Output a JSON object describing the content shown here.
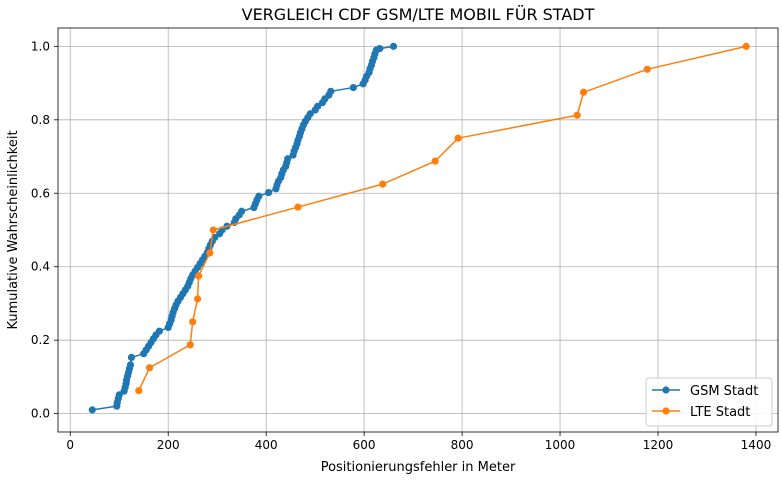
{
  "chart_data": {
    "type": "line",
    "title": "VERGLEICH CDF GSM/LTE MOBIL FÜR STADT",
    "xlabel": "Positionierungsfehler in Meter",
    "ylabel": "Kumulative Wahrscheinlichkeit",
    "xlim": [
      -25,
      1445
    ],
    "ylim": [
      -0.05,
      1.05
    ],
    "xticks": [
      0,
      200,
      400,
      600,
      800,
      1000,
      1200,
      1400
    ],
    "yticks": [
      0.0,
      0.2,
      0.4,
      0.6,
      0.8,
      1.0
    ],
    "xtick_labels": [
      "0",
      "200",
      "400",
      "600",
      "800",
      "1000",
      "1200",
      "1400"
    ],
    "ytick_labels": [
      "0.0",
      "0.2",
      "0.4",
      "0.6",
      "0.8",
      "1.0"
    ],
    "grid": true,
    "legend": "bottom-right",
    "series": [
      {
        "name": "GSM Stadt",
        "color": "#1f77b4",
        "x": [
          45,
          95,
          96,
          98,
          100,
          110,
          112,
          114,
          115,
          117,
          119,
          121,
          123,
          125,
          150,
          155,
          160,
          165,
          170,
          175,
          182,
          200,
          203,
          206,
          208,
          210,
          213,
          216,
          220,
          225,
          230,
          235,
          240,
          243,
          246,
          250,
          255,
          260,
          265,
          270,
          275,
          280,
          283,
          286,
          290,
          295,
          305,
          310,
          320,
          335,
          338,
          345,
          350,
          375,
          378,
          381,
          385,
          405,
          420,
          422,
          425,
          430,
          432,
          435,
          440,
          442,
          444,
          455,
          457,
          460,
          463,
          465,
          468,
          470,
          473,
          476,
          480,
          485,
          490,
          500,
          505,
          515,
          520,
          528,
          532,
          578,
          598,
          602,
          605,
          610,
          612,
          615,
          617,
          620,
          622,
          625,
          632,
          660
        ],
        "y": [
          0.0102,
          0.0204,
          0.0306,
          0.0408,
          0.051,
          0.0612,
          0.0714,
          0.0816,
          0.0918,
          0.102,
          0.1122,
          0.1224,
          0.1327,
          0.1531,
          0.1633,
          0.1735,
          0.1837,
          0.1939,
          0.2041,
          0.2143,
          0.2245,
          0.2347,
          0.2449,
          0.2551,
          0.2653,
          0.2755,
          0.2857,
          0.2959,
          0.3061,
          0.3163,
          0.3265,
          0.3367,
          0.3469,
          0.3571,
          0.3673,
          0.3776,
          0.3878,
          0.398,
          0.4082,
          0.4184,
          0.4286,
          0.4388,
          0.449,
          0.4592,
          0.4694,
          0.4796,
          0.4898,
          0.5,
          0.5102,
          0.5204,
          0.5306,
          0.5408,
          0.551,
          0.5612,
          0.5714,
          0.5816,
          0.5918,
          0.602,
          0.6122,
          0.6224,
          0.6327,
          0.6429,
          0.6531,
          0.6633,
          0.6735,
          0.6837,
          0.6939,
          0.7041,
          0.7143,
          0.7245,
          0.7347,
          0.7449,
          0.7551,
          0.7653,
          0.7755,
          0.7857,
          0.7959,
          0.8061,
          0.8163,
          0.8265,
          0.8367,
          0.8469,
          0.8571,
          0.8673,
          0.8776,
          0.8878,
          0.898,
          0.9082,
          0.9184,
          0.9286,
          0.9388,
          0.949,
          0.9592,
          0.9694,
          0.9796,
          0.9898,
          0.994,
          1.0
        ]
      },
      {
        "name": "LTE Stadt",
        "color": "#ff7f0e",
        "x": [
          140,
          162,
          245,
          250,
          260,
          262,
          285,
          292,
          465,
          638,
          745,
          792,
          1035,
          1048,
          1178,
          1380
        ],
        "y": [
          0.0625,
          0.125,
          0.1875,
          0.25,
          0.3125,
          0.375,
          0.4375,
          0.5,
          0.5625,
          0.625,
          0.6875,
          0.75,
          0.8125,
          0.875,
          0.9375,
          1.0
        ]
      }
    ]
  }
}
